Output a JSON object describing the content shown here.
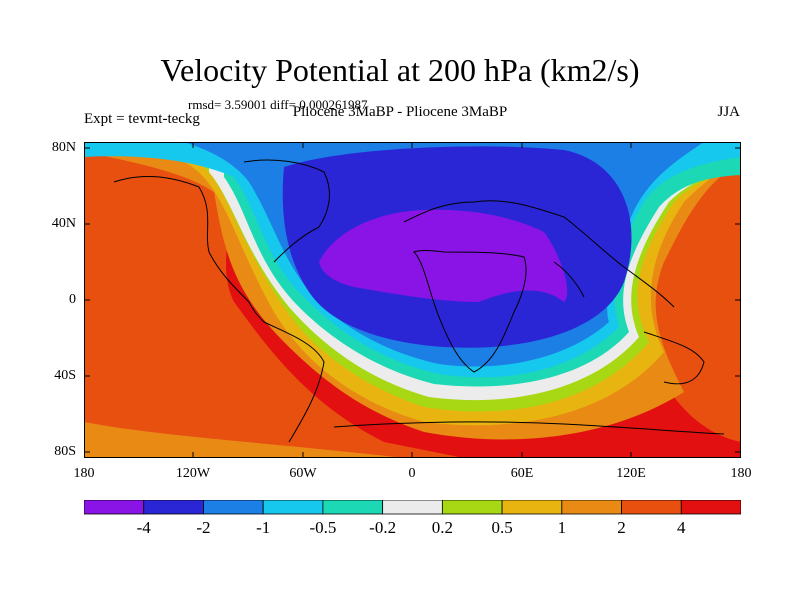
{
  "title": "Velocity Potential at 200 hPa (km2/s)",
  "stats": "rmsd= 3.59001 diff= 0.000261987",
  "experiment": "Expt = tevmt-teckg",
  "comparison": "Pliocene   3MaBP - Pliocene   3MaBP",
  "season": "JJA",
  "lat_labels": [
    "80N",
    "40N",
    "0",
    "40S",
    "80S"
  ],
  "lon_labels": [
    "180",
    "120W",
    "60W",
    "0",
    "60E",
    "120E",
    "180"
  ],
  "colorbar": {
    "labels": [
      "-4",
      "-2",
      "-1",
      "-0.5",
      "-0.2",
      "0.2",
      "0.5",
      "1",
      "2",
      "4"
    ],
    "colors": [
      "#8a14e6",
      "#2a26d6",
      "#1c7fe6",
      "#16c8ee",
      "#1cd8b4",
      "#ececec",
      "#a8d814",
      "#e8b410",
      "#e88a14",
      "#e85010",
      "#e21010"
    ]
  }
}
